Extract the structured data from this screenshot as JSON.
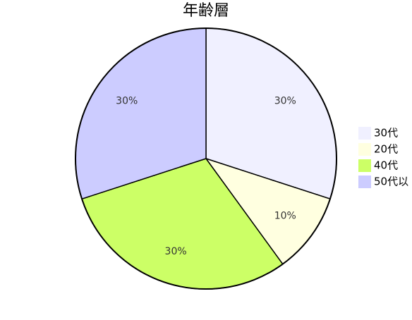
{
  "chart_data": {
    "type": "pie",
    "title": "年齢層",
    "categories": [
      "30代",
      "20代",
      "40代",
      "50代以"
    ],
    "values": [
      30,
      10,
      30,
      30
    ],
    "value_labels": [
      "30%",
      "10%",
      "30%",
      "30%"
    ],
    "colors": [
      "#f0f0ff",
      "#ffffe0",
      "#ccff66",
      "#ccccff"
    ],
    "legend": "right"
  }
}
